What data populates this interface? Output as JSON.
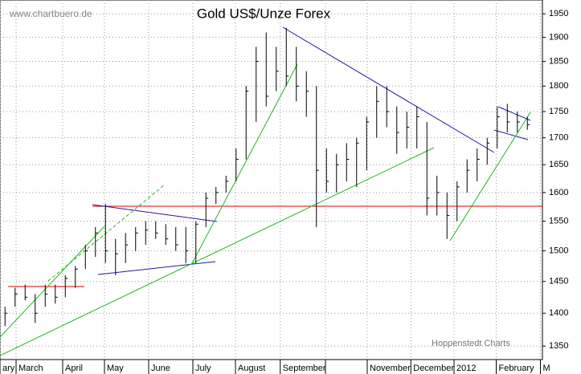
{
  "chart_data": {
    "type": "ohlc",
    "title": "Gold US$/Unze Forex",
    "source": "www.chartbuero.de",
    "credit": "Hoppenstedt Charts",
    "log_scale": true,
    "grid": true,
    "color": "#000000",
    "ylim": [
      1330,
      1980
    ],
    "yticks": [
      1350,
      1400,
      1450,
      1500,
      1550,
      1600,
      1650,
      1700,
      1750,
      1800,
      1850,
      1900,
      1950
    ],
    "xlim": [
      0,
      54
    ],
    "xticks": [
      {
        "value": 0,
        "label": "ary"
      },
      {
        "value": 1.6,
        "label": "March"
      },
      {
        "value": 6.24,
        "label": "April"
      },
      {
        "value": 10.4,
        "label": "May"
      },
      {
        "value": 14.8,
        "label": "June"
      },
      {
        "value": 19.2,
        "label": "July"
      },
      {
        "value": 23.44,
        "label": "August"
      },
      {
        "value": 27.9,
        "label": "September"
      },
      {
        "value": 32.4,
        "label": null
      },
      {
        "value": 36.56,
        "label": "November"
      },
      {
        "value": 40.9,
        "label": "December"
      },
      {
        "value": 45.2,
        "label": "2012"
      },
      {
        "value": 49.4,
        "label": "February"
      },
      {
        "value": 53.8,
        "label": "M"
      }
    ],
    "x": [
      0.5,
      1.5,
      2.5,
      3.5,
      4.5,
      5.5,
      6.5,
      7.5,
      8.5,
      9.5,
      10.5,
      11.5,
      12.5,
      13.5,
      14.5,
      15.5,
      16.5,
      17.5,
      18.5,
      19.5,
      20.5,
      21.5,
      22.5,
      23.5,
      24.5,
      25.5,
      26.5,
      27.5,
      28.5,
      29.5,
      30.5,
      31.5,
      32.5,
      33.5,
      34.5,
      35.5,
      36.5,
      37.5,
      38.5,
      39.5,
      40.5,
      41.5,
      42.5,
      43.5,
      44.5,
      45.5,
      46.5,
      47.5,
      48.5,
      49.5,
      50.5,
      51.5,
      52.5
    ],
    "high": [
      1410,
      1440,
      1445,
      1430,
      1445,
      1445,
      1460,
      1475,
      1510,
      1540,
      1580,
      1520,
      1530,
      1540,
      1550,
      1550,
      1545,
      1540,
      1540,
      1550,
      1600,
      1610,
      1630,
      1680,
      1800,
      1880,
      1910,
      1880,
      1920,
      1880,
      1830,
      1800,
      1680,
      1670,
      1690,
      1700,
      1740,
      1800,
      1800,
      1760,
      1750,
      1760,
      1730,
      1630,
      1600,
      1620,
      1660,
      1680,
      1700,
      1760,
      1765,
      1750,
      1740
    ],
    "low": [
      1380,
      1410,
      1420,
      1385,
      1410,
      1415,
      1425,
      1440,
      1470,
      1490,
      1480,
      1460,
      1480,
      1500,
      1510,
      1520,
      1510,
      1500,
      1480,
      1480,
      1540,
      1580,
      1600,
      1620,
      1660,
      1730,
      1760,
      1790,
      1800,
      1770,
      1740,
      1540,
      1600,
      1600,
      1620,
      1610,
      1640,
      1700,
      1720,
      1670,
      1680,
      1680,
      1560,
      1560,
      1520,
      1550,
      1600,
      1620,
      1650,
      1680,
      1710,
      1710,
      1715
    ],
    "close": [
      1400,
      1430,
      1425,
      1400,
      1430,
      1425,
      1455,
      1470,
      1500,
      1530,
      1500,
      1495,
      1510,
      1530,
      1535,
      1530,
      1520,
      1510,
      1500,
      1545,
      1590,
      1600,
      1620,
      1660,
      1790,
      1850,
      1780,
      1830,
      1820,
      1800,
      1790,
      1640,
      1620,
      1650,
      1660,
      1690,
      1730,
      1770,
      1750,
      1710,
      1720,
      1740,
      1590,
      1600,
      1560,
      1610,
      1640,
      1660,
      1690,
      1740,
      1730,
      1730,
      1725
    ]
  }
}
